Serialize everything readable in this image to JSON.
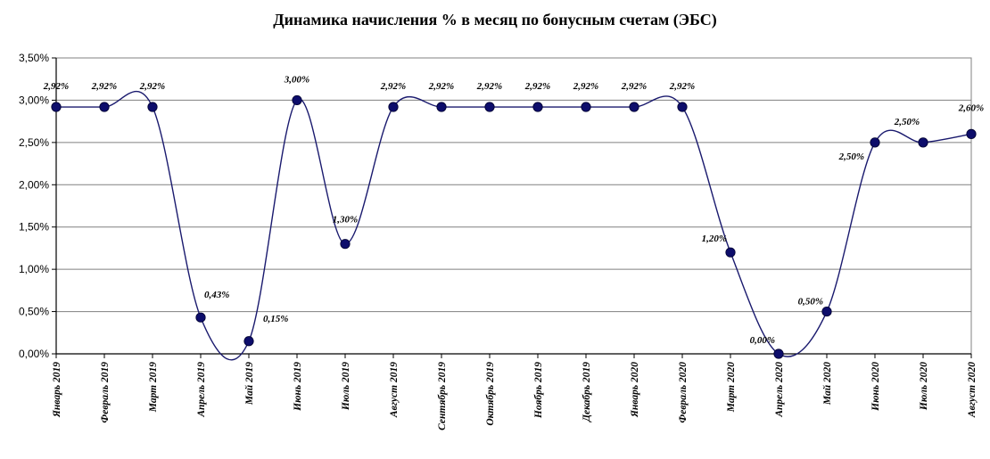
{
  "chart_data": {
    "type": "line",
    "title": "Динамика начисления % в месяц по бонусным счетам (ЭБС)",
    "categories": [
      "Январь 2019",
      "Февраль 2019",
      "Март 2019",
      "Апрель 2019",
      "Май 2019",
      "Июнь 2019",
      "Июль 2019",
      "Август 2019",
      "Сентябрь 2019",
      "Октябрь 2019",
      "Ноябрь 2019",
      "Декабрь 2019",
      "Январь 2020",
      "Февраль 2020",
      "Март 2020",
      "Апрель 2020",
      "Май 2020",
      "Июнь 2020",
      "Июль 2020",
      "Август 2020"
    ],
    "values": [
      2.92,
      2.92,
      2.92,
      0.43,
      0.15,
      3.0,
      1.3,
      2.92,
      2.92,
      2.92,
      2.92,
      2.92,
      2.92,
      2.92,
      1.2,
      0.0,
      0.5,
      2.5,
      2.5,
      2.6
    ],
    "data_labels": [
      "2,92%",
      "2,92%",
      "2,92%",
      "0,43%",
      "0,15%",
      "3,00%",
      "1,30%",
      "2,92%",
      "2,92%",
      "2,92%",
      "2,92%",
      "2,92%",
      "2,92%",
      "2,92%",
      "1,20%",
      "0,00%",
      "0,50%",
      "2,50%",
      "2,50%",
      "2,60%"
    ],
    "y_ticks": [
      0,
      0.5,
      1,
      1.5,
      2,
      2.5,
      3,
      3.5
    ],
    "y_tick_labels": [
      "0,00%",
      "0,50%",
      "1,00%",
      "1,50%",
      "2,00%",
      "2,50%",
      "3,00%",
      "3,50%"
    ],
    "ylim": [
      0,
      3.5
    ],
    "grid": true,
    "legend": "none",
    "line_color": "#1a1a6e",
    "marker_color": "#0d0d6b",
    "grid_color": "#808080"
  }
}
